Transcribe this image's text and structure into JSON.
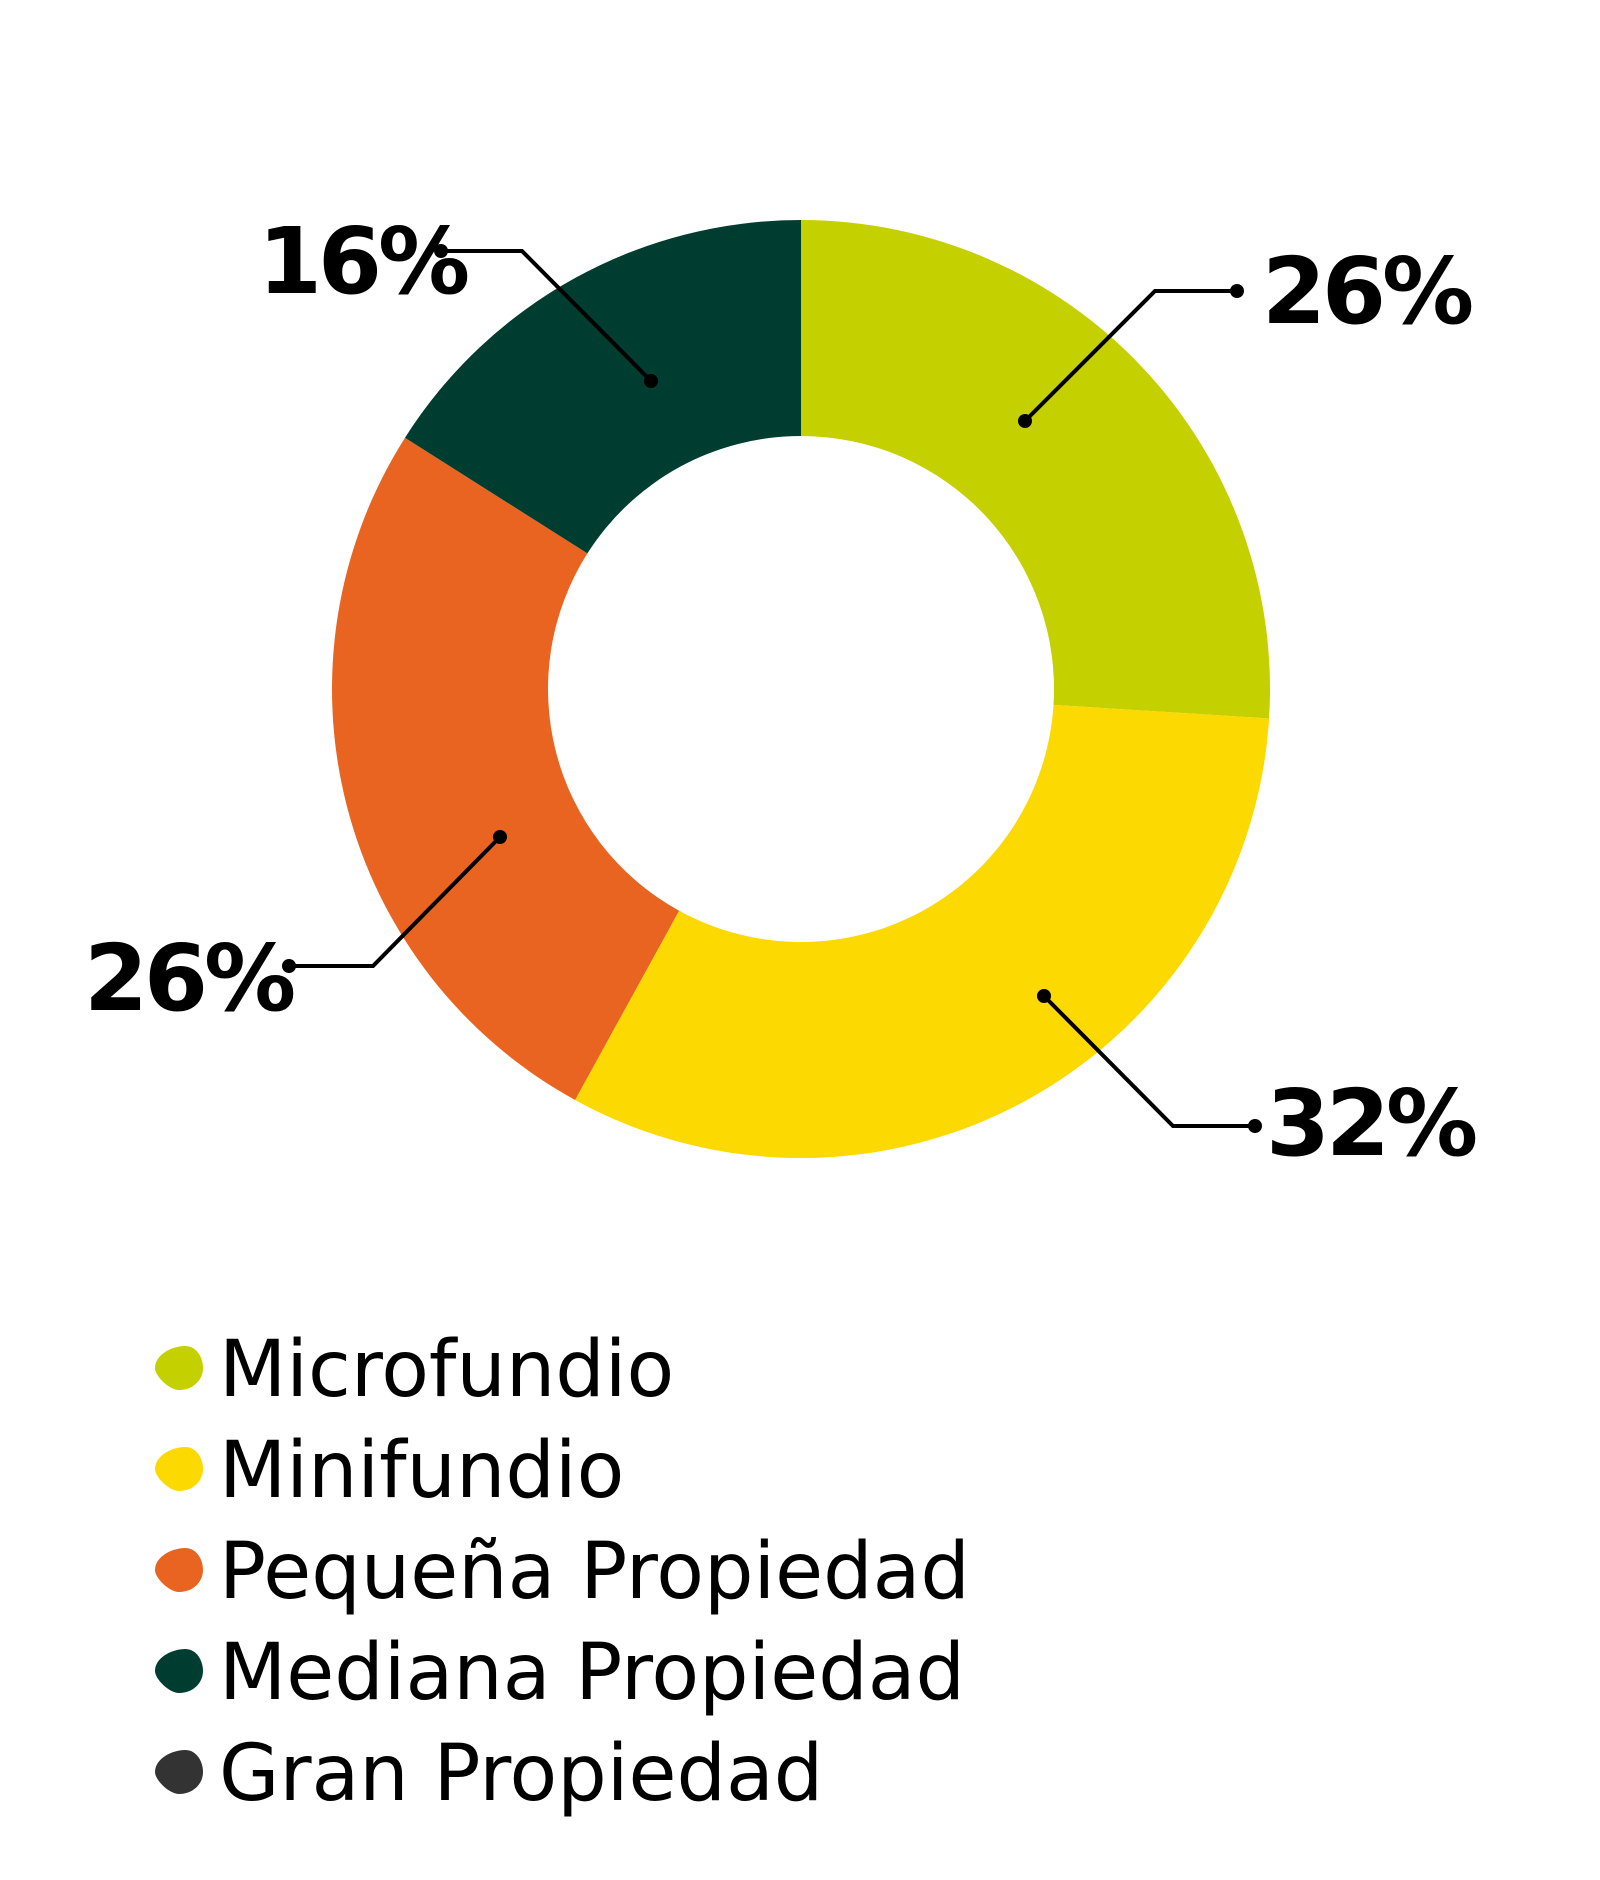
{
  "chart_data": {
    "type": "pie",
    "donut": true,
    "start": "top, clockwise",
    "categories": [
      "Microfundio",
      "Minifundio",
      "Pequeña Propiedad",
      "Mediana Propiedad",
      "Gran Propiedad"
    ],
    "values": [
      26,
      32,
      26,
      16,
      0
    ],
    "data_labels": [
      "26%",
      "32%",
      "26%",
      "16%",
      ""
    ],
    "colors": [
      "#c5d000",
      "#fcd900",
      "#e96420",
      "#003d31",
      "#333333"
    ],
    "legend_placement": "bottom-left",
    "unit": "%"
  }
}
